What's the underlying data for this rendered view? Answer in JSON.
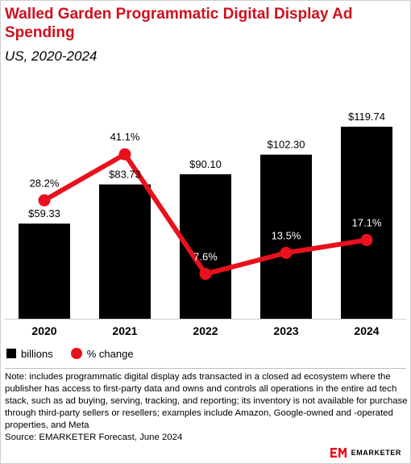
{
  "header": {
    "title": "Walled Garden Programmatic Digital Display Ad Spending",
    "subtitle": "US, 2020-2024"
  },
  "legend": {
    "bar_label": "billions",
    "line_label": "% change"
  },
  "footer": {
    "note": "Note: includes programmatic digital display ads transacted in a closed ad ecosystem where the publisher has access to first-party data and owns and controls all operations in the entire ad tech stack, such as ad buying, serving, tracking, and reporting; its inventory is not available for purchase through third-party sellers or resellers; examples include Amazon, Google-owned and -operated properties, and Meta",
    "source": "Source: EMARKETER Forecast, June 2024",
    "brand": "EMARKETER"
  },
  "colors": {
    "bar": "#000000",
    "line": "#e8111d",
    "title": "#d0101d"
  },
  "chart_data": {
    "type": "bar",
    "categories": [
      "2020",
      "2021",
      "2022",
      "2023",
      "2024"
    ],
    "series": [
      {
        "name": "billions",
        "type": "bar",
        "values": [
          59.33,
          83.73,
          90.1,
          102.3,
          119.74
        ],
        "labels": [
          "$59.33",
          "$83.73",
          "$90.10",
          "$102.30",
          "$119.74"
        ]
      },
      {
        "name": "% change",
        "type": "line",
        "values": [
          28.2,
          41.1,
          7.6,
          13.5,
          17.1
        ],
        "labels": [
          "28.2%",
          "41.1%",
          "7.6%",
          "13.5%",
          "17.1%"
        ]
      }
    ],
    "title": "Walled Garden Programmatic Digital Display Ad Spending",
    "subtitle": "US, 2020-2024",
    "legend_position": "bottom-left",
    "grid": false
  }
}
